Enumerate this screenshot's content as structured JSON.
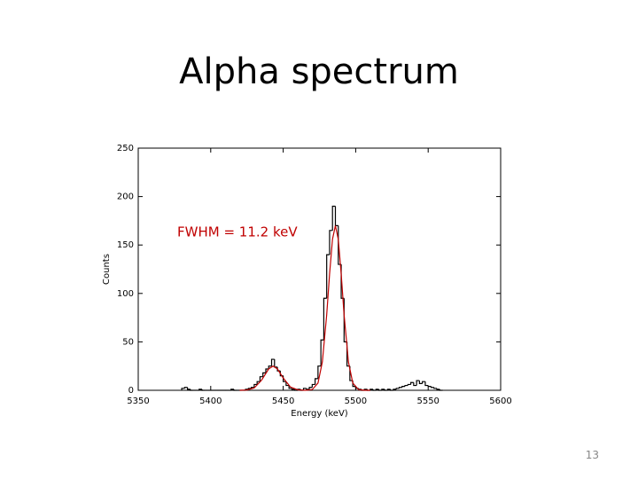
{
  "title": "Alpha spectrum",
  "page_number": "13",
  "chart_data": {
    "type": "histogram",
    "xlabel": "Energy (keV)",
    "ylabel": "Counts",
    "annotation": "FWHM = 11.2 keV",
    "xlim": [
      5350,
      5600
    ],
    "xticks": [
      5350,
      5400,
      5450,
      5500,
      5550,
      5600
    ],
    "ylim": [
      0,
      250
    ],
    "yticks": [
      0,
      50,
      100,
      150,
      200,
      250
    ],
    "color": "#000000",
    "bins": [
      5380,
      5382,
      5384,
      5386,
      5388,
      5390,
      5392,
      5394,
      5396,
      5398,
      5400,
      5402,
      5404,
      5406,
      5408,
      5410,
      5412,
      5414,
      5416,
      5418,
      5420,
      5422,
      5424,
      5426,
      5428,
      5430,
      5432,
      5434,
      5436,
      5438,
      5440,
      5442,
      5444,
      5446,
      5448,
      5450,
      5452,
      5454,
      5456,
      5458,
      5460,
      5462,
      5464,
      5466,
      5468,
      5470,
      5472,
      5474,
      5476,
      5478,
      5480,
      5482,
      5484,
      5486,
      5488,
      5490,
      5492,
      5494,
      5496,
      5498,
      5500,
      5502,
      5504,
      5506,
      5508,
      5510,
      5512,
      5514,
      5516,
      5518,
      5520,
      5522,
      5524,
      5526,
      5528,
      5530,
      5532,
      5534,
      5536,
      5538,
      5540,
      5542,
      5544,
      5546,
      5548,
      5550,
      5552,
      5554,
      5556,
      5558,
      5560
    ],
    "values": [
      2,
      3,
      1,
      0,
      0,
      0,
      1,
      0,
      0,
      0,
      0,
      0,
      0,
      0,
      0,
      0,
      0,
      1,
      0,
      0,
      0,
      0,
      1,
      2,
      3,
      6,
      9,
      14,
      18,
      22,
      25,
      32,
      24,
      20,
      15,
      9,
      5,
      2,
      1,
      0,
      1,
      0,
      2,
      1,
      3,
      6,
      12,
      25,
      52,
      95,
      140,
      165,
      190,
      170,
      130,
      95,
      50,
      25,
      10,
      4,
      2,
      1,
      0,
      1,
      0,
      1,
      0,
      1,
      0,
      1,
      0,
      1,
      0,
      1,
      2,
      3,
      4,
      5,
      6,
      8,
      5,
      10,
      7,
      9,
      5,
      4,
      3,
      2,
      1,
      0
    ],
    "fit": {
      "color": "#c00000",
      "x": [
        5420,
        5425,
        5430,
        5435,
        5440,
        5443,
        5446,
        5450,
        5455,
        5460,
        5465,
        5470,
        5474,
        5477,
        5480,
        5482,
        5484,
        5486,
        5488,
        5490,
        5492,
        5495,
        5498,
        5502,
        5506,
        5510
      ],
      "values": [
        0,
        0.3,
        2.4,
        10.3,
        22.1,
        25,
        22.1,
        12.7,
        3.4,
        0.5,
        0,
        0.7,
        7.5,
        29.3,
        77.9,
        120.2,
        155.9,
        170,
        155.9,
        120.2,
        77.9,
        29.3,
        7.5,
        0.7,
        0,
        0
      ]
    }
  }
}
